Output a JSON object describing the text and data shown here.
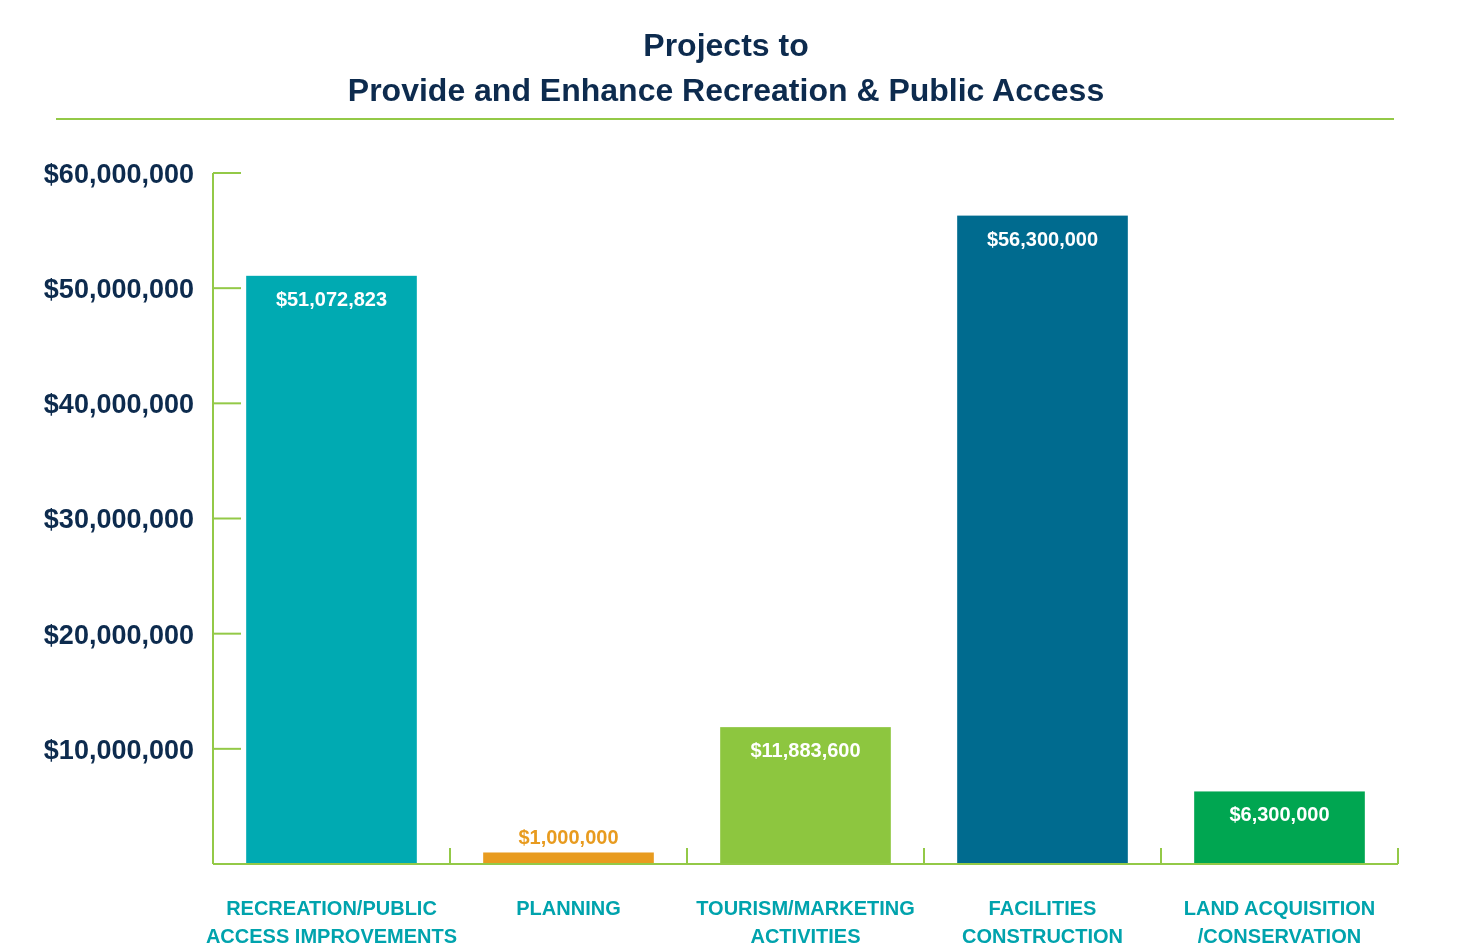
{
  "chart_data": {
    "type": "bar",
    "title": "Projects to\nProvide and Enhance Recreation & Public Access",
    "categories": [
      "RECREATION/PUBLIC ACCESS IMPROVEMENTS",
      "PLANNING",
      "TOURISM/MARKETING ACTIVITIES",
      "FACILITIES CONSTRUCTION",
      "LAND ACQUISITION /CONSERVATION"
    ],
    "values": [
      51072823,
      1000000,
      11883600,
      56300000,
      6300000
    ],
    "colors": [
      "#00aab2",
      "#e89b1f",
      "#8dc63f",
      "#006b8f",
      "#00a651"
    ],
    "value_labels": [
      "$51,072,823",
      "$1,000,000",
      "$11,883,600",
      "$56,300,000",
      "$6,300,000"
    ],
    "ylim": [
      0,
      60000000
    ],
    "yticks": [
      {
        "value": 10000000,
        "label": "$10,000,000"
      },
      {
        "value": 20000000,
        "label": "$20,000,000"
      },
      {
        "value": 30000000,
        "label": "$30,000,000"
      },
      {
        "value": 40000000,
        "label": "$40,000,000"
      },
      {
        "value": 50000000,
        "label": "$50,000,000"
      },
      {
        "value": 60000000,
        "label": "$60,000,000"
      }
    ],
    "grid": false
  }
}
